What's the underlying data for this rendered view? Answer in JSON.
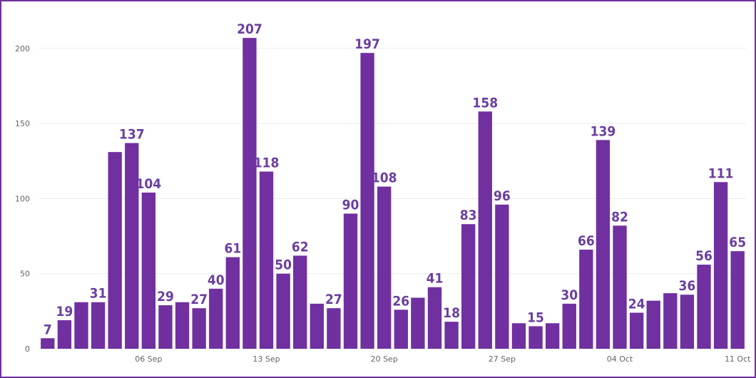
{
  "chart_data": {
    "type": "bar",
    "categories": [
      null,
      null,
      null,
      null,
      null,
      null,
      "06 Sep",
      null,
      null,
      null,
      null,
      null,
      null,
      "13 Sep",
      null,
      null,
      null,
      null,
      null,
      null,
      "20 Sep",
      null,
      null,
      null,
      null,
      null,
      null,
      "27 Sep",
      null,
      null,
      null,
      null,
      null,
      null,
      "04 Oct",
      null,
      null,
      null,
      null,
      null,
      null,
      "11 Oct"
    ],
    "values": [
      7,
      19,
      31,
      31,
      131,
      137,
      104,
      29,
      31,
      27,
      40,
      61,
      207,
      118,
      50,
      62,
      30,
      27,
      90,
      197,
      108,
      26,
      34,
      41,
      18,
      83,
      158,
      96,
      17,
      15,
      17,
      30,
      66,
      139,
      82,
      24,
      32,
      37,
      36,
      56,
      111,
      65
    ],
    "value_labels": [
      "7",
      "19",
      null,
      "31",
      null,
      "137",
      "104",
      "29",
      null,
      "27",
      "40",
      "61",
      "207",
      "118",
      "50",
      "62",
      null,
      "27",
      "90",
      "197",
      "108",
      "26",
      null,
      "41",
      "18",
      "83",
      "158",
      "96",
      null,
      "15",
      null,
      "30",
      "66",
      "139",
      "82",
      "24",
      null,
      null,
      "36",
      "56",
      "111",
      "65"
    ],
    "color": "#7030a0",
    "ylim": [
      0,
      218
    ],
    "yticks": [
      0,
      50,
      100,
      150,
      200
    ],
    "grid": true
  }
}
